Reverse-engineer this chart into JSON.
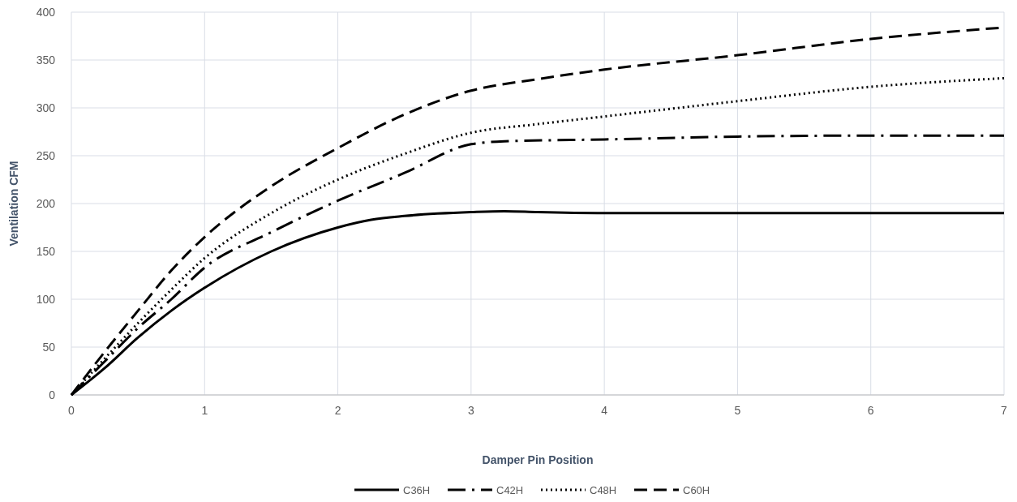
{
  "chart_data": {
    "type": "line",
    "xlabel": "Damper Pin Position",
    "ylabel": "Ventilation CFM",
    "xlim": [
      0,
      7
    ],
    "xticks": [
      0,
      1,
      2,
      3,
      4,
      5,
      6,
      7
    ],
    "ylim": [
      0,
      400
    ],
    "yticks": [
      0,
      50,
      100,
      150,
      200,
      250,
      300,
      350,
      400
    ],
    "grid": true,
    "legend": "bottom",
    "marker": "none",
    "series": [
      {
        "name": "C36H",
        "color": "#000000",
        "line_style": "solid",
        "x": [
          0,
          0.25,
          0.5,
          0.75,
          1,
          1.5,
          2,
          2.25,
          2.5,
          3,
          3.25,
          3.5,
          4,
          5,
          6,
          7
        ],
        "values": [
          0,
          28,
          60,
          88,
          112,
          150,
          175,
          183,
          187,
          191,
          192,
          191,
          190,
          190,
          190,
          190
        ]
      },
      {
        "name": "C42H",
        "color": "#000000",
        "line_style": "dashdot",
        "x": [
          0,
          0.25,
          0.5,
          0.75,
          1,
          1.5,
          2,
          2.5,
          3,
          3.25,
          4,
          5,
          6,
          7
        ],
        "values": [
          0,
          35,
          70,
          100,
          133,
          170,
          203,
          232,
          262,
          265,
          267,
          270,
          271,
          271
        ]
      },
      {
        "name": "C48H",
        "color": "#000000",
        "line_style": "dotted",
        "x": [
          0,
          0.25,
          0.5,
          0.75,
          1,
          1.5,
          2,
          2.5,
          3,
          3.5,
          4,
          5,
          6,
          7
        ],
        "values": [
          0,
          38,
          75,
          110,
          143,
          190,
          225,
          252,
          274,
          283,
          291,
          307,
          322,
          331
        ]
      },
      {
        "name": "C60H",
        "color": "#000000",
        "line_style": "dashed",
        "x": [
          0,
          0.25,
          0.5,
          0.75,
          1,
          1.5,
          2,
          2.5,
          3,
          3.5,
          4,
          5,
          6,
          7
        ],
        "values": [
          0,
          45,
          88,
          130,
          165,
          218,
          258,
          293,
          318,
          330,
          340,
          355,
          372,
          384
        ]
      }
    ]
  }
}
